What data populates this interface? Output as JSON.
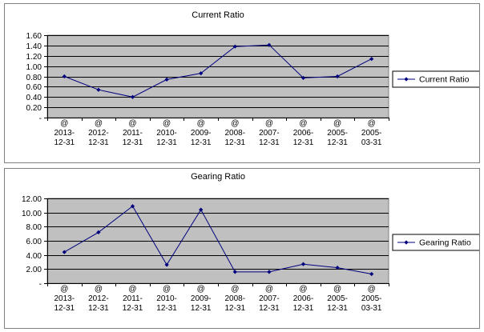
{
  "chart_data": [
    {
      "type": "line",
      "title": "Current Ratio",
      "categories": [
        [
          "@",
          "2013-",
          "12-31"
        ],
        [
          "@",
          "2012-",
          "12-31"
        ],
        [
          "@",
          "2011-",
          "12-31"
        ],
        [
          "@",
          "2010-",
          "12-31"
        ],
        [
          "@",
          "2009-",
          "12-31"
        ],
        [
          "@",
          "2008-",
          "12-31"
        ],
        [
          "@",
          "2007-",
          "12-31"
        ],
        [
          "@",
          "2006-",
          "12-31"
        ],
        [
          "@",
          "2005-",
          "12-31"
        ],
        [
          "@",
          "2005-",
          "03-31"
        ]
      ],
      "series": [
        {
          "name": "Current Ratio",
          "values": [
            0.8,
            0.54,
            0.4,
            0.74,
            0.86,
            1.38,
            1.41,
            0.77,
            0.8,
            1.14
          ]
        }
      ],
      "ylim": [
        0,
        1.6
      ],
      "yticks": [
        "-",
        "0.20",
        "0.40",
        "0.60",
        "0.80",
        "1.00",
        "1.20",
        "1.40",
        "1.60"
      ],
      "grid": true,
      "legend": "right",
      "colors": {
        "line": "#00007f",
        "plot_bg": "#c0c0c0",
        "grid": "#000000"
      }
    },
    {
      "type": "line",
      "title": "Gearing Ratio",
      "categories": [
        [
          "@",
          "2013-",
          "12-31"
        ],
        [
          "@",
          "2012-",
          "12-31"
        ],
        [
          "@",
          "2011-",
          "12-31"
        ],
        [
          "@",
          "2010-",
          "12-31"
        ],
        [
          "@",
          "2009-",
          "12-31"
        ],
        [
          "@",
          "2008-",
          "12-31"
        ],
        [
          "@",
          "2007-",
          "12-31"
        ],
        [
          "@",
          "2006-",
          "12-31"
        ],
        [
          "@",
          "2005-",
          "12-31"
        ],
        [
          "@",
          "2005-",
          "03-31"
        ]
      ],
      "series": [
        {
          "name": "Gearing Ratio",
          "values": [
            4.4,
            7.2,
            10.9,
            2.6,
            10.4,
            1.6,
            1.6,
            2.7,
            2.2,
            1.3
          ]
        }
      ],
      "ylim": [
        0,
        12
      ],
      "yticks": [
        "-",
        "2.00",
        "4.00",
        "6.00",
        "8.00",
        "10.00",
        "12.00"
      ],
      "grid": true,
      "legend": "right",
      "colors": {
        "line": "#00007f",
        "plot_bg": "#c0c0c0",
        "grid": "#000000"
      }
    }
  ]
}
